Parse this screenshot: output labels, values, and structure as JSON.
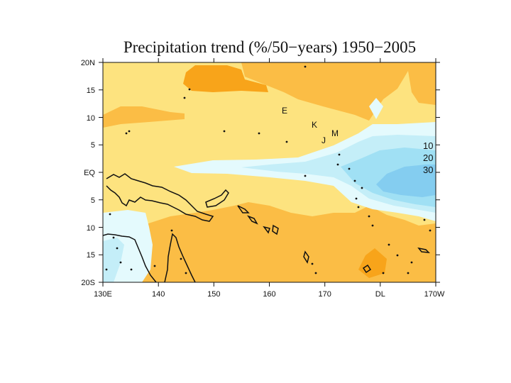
{
  "title": "Precipitation trend (%/50−years) 1950−2005",
  "axes": {
    "y_ticks": [
      "20N",
      "15",
      "10",
      "5",
      "EQ",
      "5",
      "10",
      "15",
      "20S"
    ],
    "x_ticks": [
      "130E",
      "140",
      "150",
      "160",
      "170",
      "DL",
      "170W"
    ]
  },
  "place_labels": [
    "E",
    "K",
    "J",
    "M"
  ],
  "legend": {
    "levels": [
      "10",
      "20",
      "30"
    ]
  },
  "colors": {
    "dark_orange": "#f8a41a",
    "orange": "#fbbd45",
    "light_yellow": "#fde37f",
    "pale_cyan": "#e4fafd",
    "light_cyan": "#c4eef8",
    "cyan": "#a0e0f4",
    "blue": "#84cdf0"
  }
}
